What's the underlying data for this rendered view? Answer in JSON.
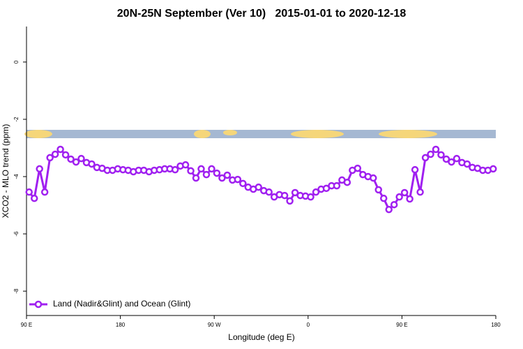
{
  "chart_data": {
    "type": "line",
    "title": "20N-25N September (Ver 10)   2015-01-01 to 2020-12-18",
    "x_label": "Longitude (deg E)",
    "y_label": "XCO2 - MLO trend (ppm)",
    "x": [
      92.5,
      97.5,
      102.5,
      107.5,
      112.5,
      117.5,
      122.5,
      127.5,
      132.5,
      137.5,
      142.5,
      147.5,
      152.5,
      157.5,
      162.5,
      167.5,
      172.5,
      177.5,
      182.5,
      187.5,
      192.5,
      197.5,
      202.5,
      207.5,
      212.5,
      217.5,
      222.5,
      227.5,
      232.5,
      237.5,
      242.5,
      247.5,
      252.5,
      257.5,
      262.5,
      267.5,
      272.5,
      277.5,
      282.5,
      287.5,
      292.5,
      297.5,
      302.5,
      307.5,
      312.5,
      317.5,
      322.5,
      327.5,
      332.5,
      337.5,
      342.5,
      347.5,
      352.5,
      357.5,
      362.5,
      367.5,
      372.5,
      377.5,
      382.5,
      387.5,
      392.5,
      397.5,
      402.5,
      407.5,
      412.5,
      417.5,
      422.5,
      427.5,
      432.5,
      437.5,
      442.5,
      447.5,
      452.5,
      457.5,
      462.5,
      467.5,
      472.5,
      477.5,
      482.5,
      487.5,
      492.5,
      497.5,
      502.5,
      507.5,
      512.5,
      517.5,
      522.5,
      527.5,
      532.5,
      537.5
    ],
    "series": [
      {
        "name": "Land (Nadir&Glint) and Ocean (Glint)",
        "color": "#a020f0",
        "values": [
          -4.54,
          -4.76,
          -3.73,
          -4.54,
          -3.34,
          -3.22,
          -3.05,
          -3.24,
          -3.39,
          -3.49,
          -3.37,
          -3.51,
          -3.56,
          -3.68,
          -3.71,
          -3.78,
          -3.78,
          -3.73,
          -3.76,
          -3.78,
          -3.83,
          -3.78,
          -3.78,
          -3.83,
          -3.78,
          -3.76,
          -3.73,
          -3.73,
          -3.76,
          -3.63,
          -3.59,
          -3.8,
          -4.05,
          -3.73,
          -3.93,
          -3.73,
          -3.88,
          -4.05,
          -3.95,
          -4.12,
          -4.1,
          -4.24,
          -4.37,
          -4.44,
          -4.37,
          -4.49,
          -4.54,
          -4.71,
          -4.63,
          -4.66,
          -4.85,
          -4.56,
          -4.66,
          -4.68,
          -4.71,
          -4.54,
          -4.44,
          -4.41,
          -4.32,
          -4.32,
          -4.12,
          -4.2,
          -3.78,
          -3.71,
          -3.93,
          -4.0,
          -4.05,
          -4.46,
          -4.76,
          -5.15,
          -4.98,
          -4.71,
          -4.56,
          -4.78,
          -3.76,
          -4.54,
          -3.34,
          -3.22,
          -3.05,
          -3.24,
          -3.39,
          -3.49,
          -3.37,
          -3.51,
          -3.56,
          -3.68,
          -3.71,
          -3.78,
          -3.78,
          -3.73
        ]
      }
    ],
    "xlim": [
      90,
      540
    ],
    "xticks": [
      {
        "value": 90,
        "label": "90 E"
      },
      180,
      {
        "value": 270,
        "label": "90 W"
      },
      {
        "value": 360,
        "label": "0"
      },
      {
        "value": 450,
        "label": "90 E"
      },
      {
        "value": 540,
        "label": "180"
      }
    ],
    "ylim": [
      -8.85,
      1.24
    ],
    "yticks": [
      0,
      -2,
      -4,
      -6,
      -8
    ],
    "legend": "bottom-left",
    "grid": false
  }
}
